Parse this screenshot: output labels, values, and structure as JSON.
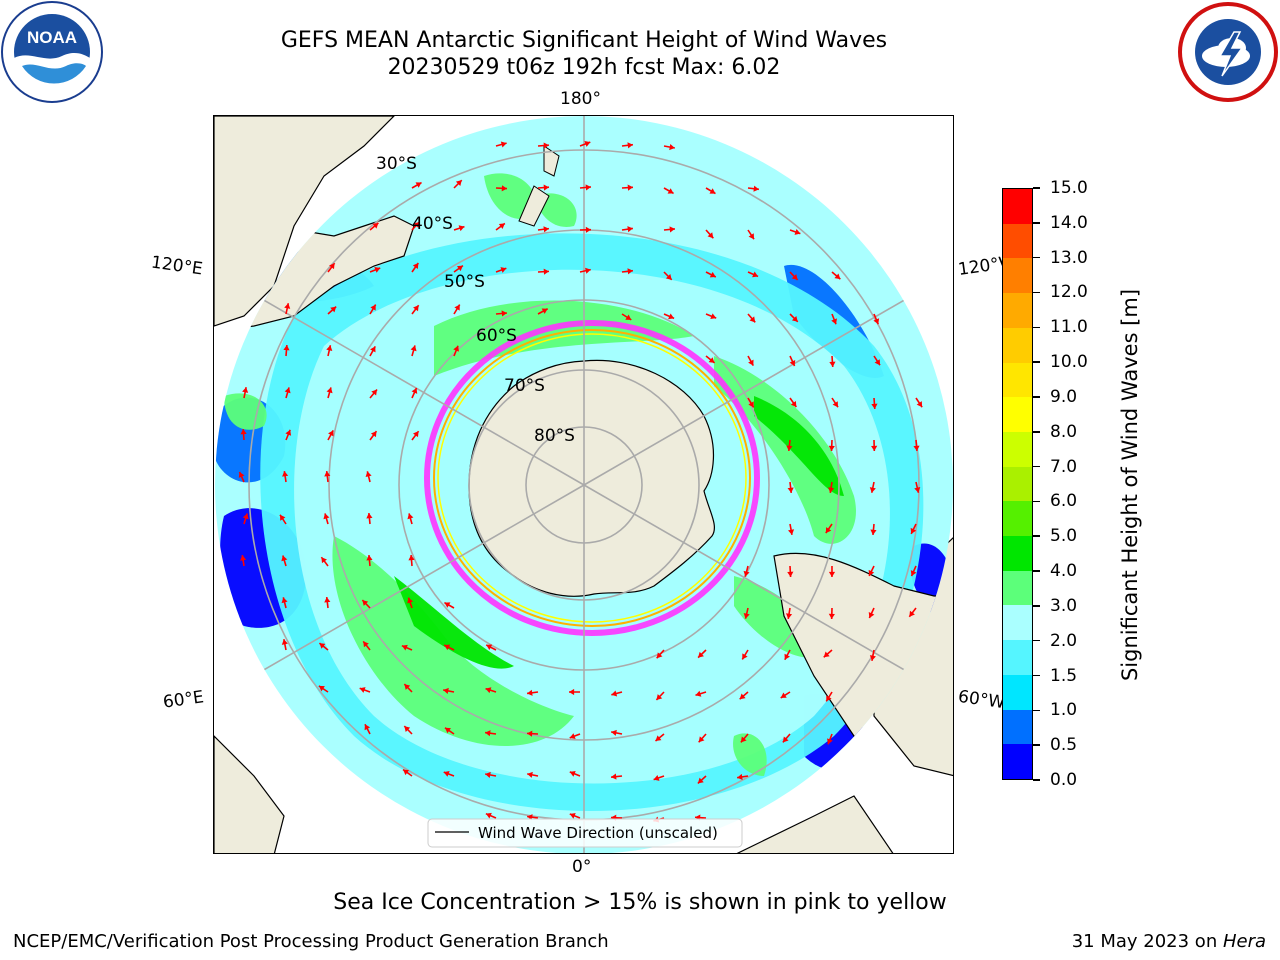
{
  "title": {
    "line1": "GEFS MEAN Antarctic Significant Height of Wind Waves",
    "line2": "20230529 t06z 192h fcst   Max: 6.02"
  },
  "logos": {
    "left": {
      "text": "NOAA",
      "icon": "noaa-logo"
    },
    "right": {
      "icon": "national-weather-service-logo"
    }
  },
  "map": {
    "projection": "south-polar-stereographic",
    "lon_labels": {
      "top": "180°",
      "bottom": "0°",
      "upper_left": "120°E",
      "upper_right": "120°W",
      "lower_left": "60°E",
      "lower_right": "60°W"
    },
    "lat_labels": [
      "30°S",
      "40°S",
      "50°S",
      "60°S",
      "70°S",
      "80°S"
    ],
    "legend": "Wind Wave Direction (unscaled)",
    "arrow_color": "#ff0000",
    "land_color": "#eeecdc",
    "sea_ice_colors": [
      "#ff33ff",
      "#ffb000",
      "#ffff00"
    ]
  },
  "colorbar": {
    "label": "Significant Height of Wind Waves [m]",
    "ticks": [
      "0.0",
      "0.5",
      "1.0",
      "1.5",
      "2.0",
      "3.0",
      "4.0",
      "5.0",
      "6.0",
      "7.0",
      "8.0",
      "9.0",
      "10.0",
      "11.0",
      "12.0",
      "13.0",
      "14.0",
      "15.0"
    ],
    "colors": [
      "#0000ff",
      "#0070ff",
      "#00e6ff",
      "#55f5ff",
      "#aaffff",
      "#5cff7a",
      "#00e600",
      "#55f000",
      "#aaf000",
      "#ccff00",
      "#ffff00",
      "#ffe600",
      "#ffcc00",
      "#ffaa00",
      "#ff7f00",
      "#ff4d00",
      "#ff0000"
    ]
  },
  "note": "Sea Ice Concentration > 15% is shown in pink to yellow",
  "footer": {
    "left": "NCEP/EMC/Verification Post Processing Product Generation Branch",
    "right_prefix": "31 May 2023 on ",
    "right_machine": "Hera"
  }
}
